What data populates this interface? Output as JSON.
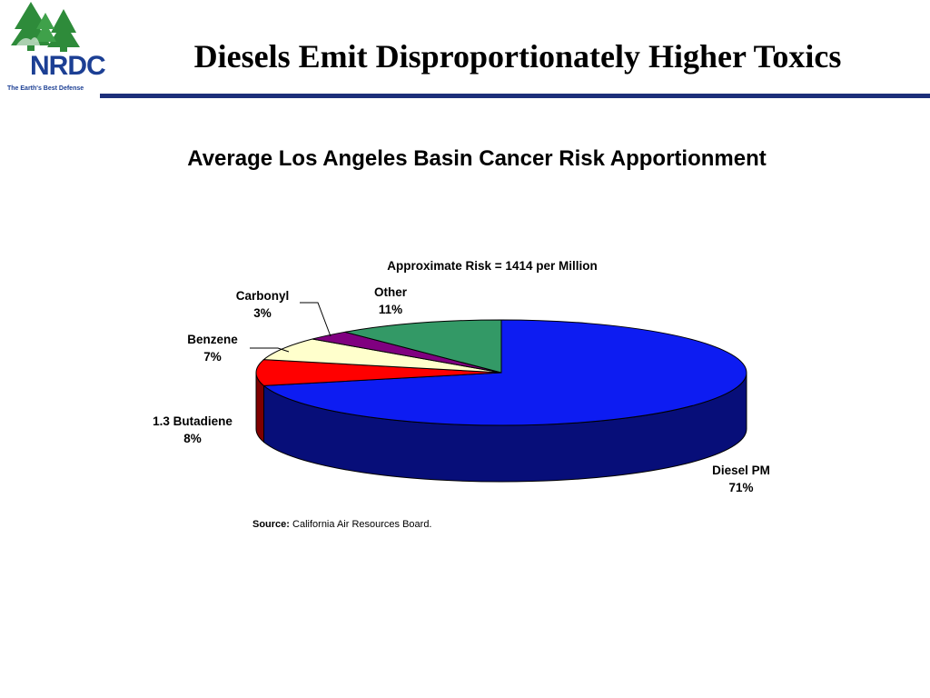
{
  "logo": {
    "name": "NRDC",
    "tagline": "The Earth's Best Defense"
  },
  "header": {
    "title": "Diesels Emit Disproportionately Higher Toxics"
  },
  "chart_data": {
    "type": "pie",
    "heading": "Average Los Angeles Basin Cancer Risk Apportionment",
    "title": "Approximate Risk = 1414 per Million",
    "three_d": true,
    "slices": [
      {
        "label": "Diesel PM",
        "value": 71,
        "value_label": "71%",
        "color": "#0d1cf2"
      },
      {
        "label": "1.3 Butadiene",
        "value": 8,
        "value_label": "8%",
        "color": "#ff0000"
      },
      {
        "label": "Benzene",
        "value": 7,
        "value_label": "7%",
        "color": "#ffffcc"
      },
      {
        "label": "Carbonyl",
        "value": 3,
        "value_label": "3%",
        "color": "#800080"
      },
      {
        "label": "Other",
        "value": 11,
        "value_label": "11%",
        "color": "#339966"
      }
    ]
  },
  "source": {
    "label": "Source:",
    "text": "California Air Resources Board."
  }
}
